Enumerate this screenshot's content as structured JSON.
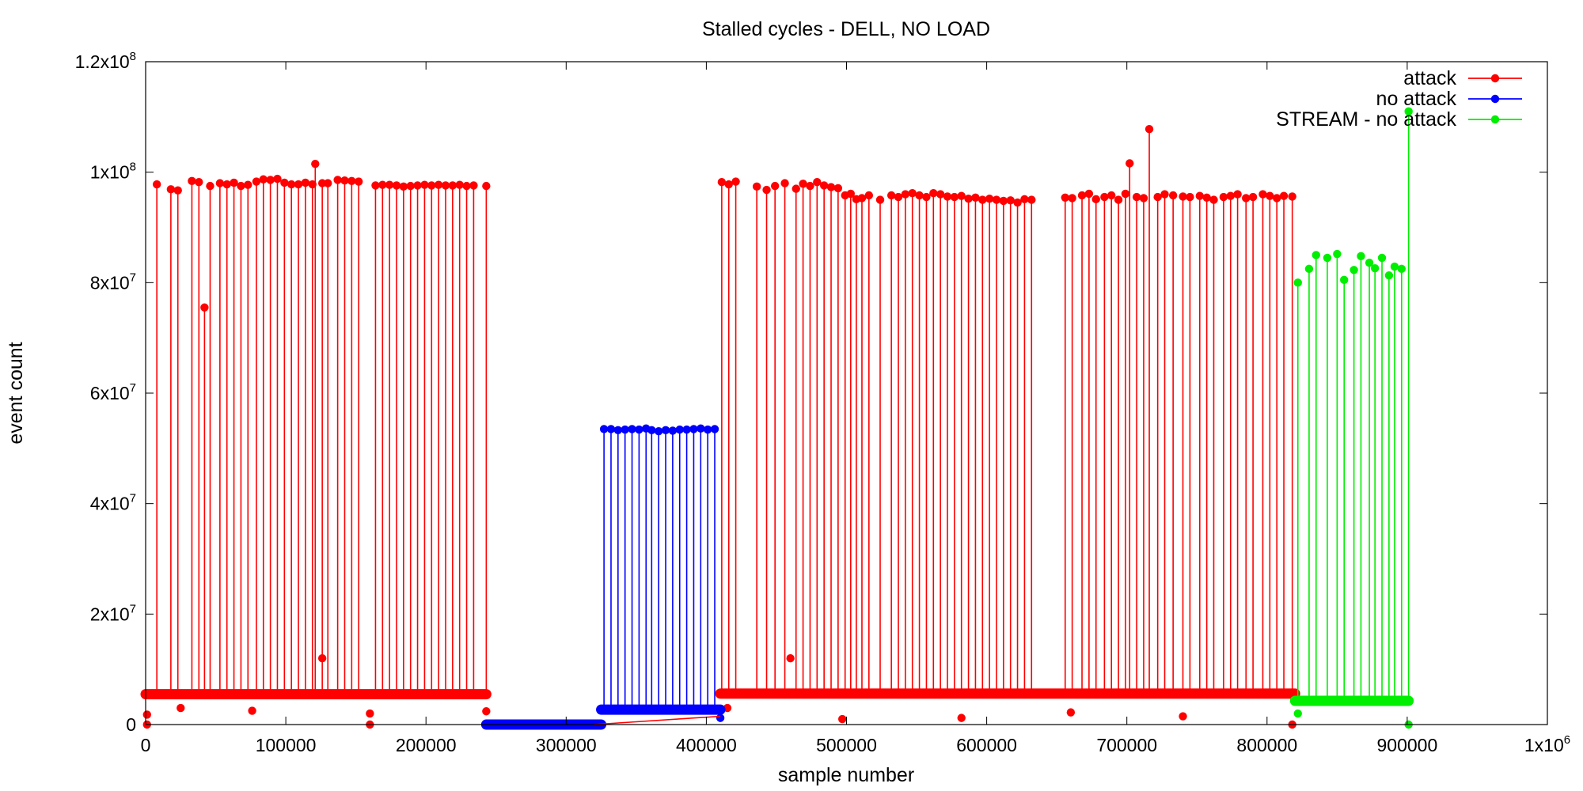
{
  "chart_data": {
    "type": "line",
    "title": "Stalled cycles - DELL, NO LOAD",
    "xlabel": "sample number",
    "ylabel": "event count",
    "xlim": [
      0,
      1000000
    ],
    "ylim": [
      0,
      120000000
    ],
    "x_ticks": [
      {
        "value": 0,
        "label": "0"
      },
      {
        "value": 100000,
        "label": "100000"
      },
      {
        "value": 200000,
        "label": "200000"
      },
      {
        "value": 300000,
        "label": "300000"
      },
      {
        "value": 400000,
        "label": "400000"
      },
      {
        "value": 500000,
        "label": "500000"
      },
      {
        "value": 600000,
        "label": "600000"
      },
      {
        "value": 700000,
        "label": "700000"
      },
      {
        "value": 800000,
        "label": "800000"
      },
      {
        "value": 900000,
        "label": "900000"
      },
      {
        "value": 1000000,
        "label": "1x10",
        "sup": "6"
      }
    ],
    "y_ticks": [
      {
        "value": 0,
        "label": "0"
      },
      {
        "value": 20000000,
        "label": "2x10",
        "sup": "7"
      },
      {
        "value": 40000000,
        "label": "4x10",
        "sup": "7"
      },
      {
        "value": 60000000,
        "label": "6x10",
        "sup": "7"
      },
      {
        "value": 80000000,
        "label": "8x10",
        "sup": "7"
      },
      {
        "value": 100000000,
        "label": "1x10",
        "sup": "8"
      },
      {
        "value": 120000000,
        "label": "1.2x10",
        "sup": "8"
      }
    ],
    "grid": false,
    "legend_position": "top-right",
    "series": [
      {
        "name": "attack",
        "color": "#ff0000",
        "segments": [
          {
            "x_start": 0,
            "x_end": 243000,
            "baseline": 5500000,
            "spikes": [
              [
                8000,
                97800000
              ],
              [
                18000,
                96900000
              ],
              [
                23000,
                96700000
              ],
              [
                33000,
                98400000
              ],
              [
                38000,
                98200000
              ],
              [
                42000,
                75500000
              ],
              [
                46000,
                97500000
              ],
              [
                53000,
                98000000
              ],
              [
                58000,
                97800000
              ],
              [
                63000,
                98100000
              ],
              [
                68000,
                97500000
              ],
              [
                73000,
                97700000
              ],
              [
                79000,
                98300000
              ],
              [
                84000,
                98700000
              ],
              [
                89000,
                98600000
              ],
              [
                94000,
                98800000
              ],
              [
                99000,
                98100000
              ],
              [
                104000,
                97800000
              ],
              [
                109000,
                97800000
              ],
              [
                114000,
                98100000
              ],
              [
                119000,
                97800000
              ],
              [
                121000,
                101500000
              ],
              [
                126000,
                98000000
              ],
              [
                130000,
                98000000
              ],
              [
                137000,
                98600000
              ],
              [
                142000,
                98500000
              ],
              [
                147000,
                98400000
              ],
              [
                152000,
                98300000
              ],
              [
                164000,
                97600000
              ],
              [
                169000,
                97700000
              ],
              [
                174000,
                97700000
              ],
              [
                179000,
                97600000
              ],
              [
                184000,
                97400000
              ],
              [
                189000,
                97500000
              ],
              [
                194000,
                97600000
              ],
              [
                199000,
                97700000
              ],
              [
                204000,
                97600000
              ],
              [
                209000,
                97700000
              ],
              [
                214000,
                97600000
              ],
              [
                219000,
                97600000
              ],
              [
                224000,
                97700000
              ],
              [
                229000,
                97500000
              ],
              [
                234000,
                97600000
              ],
              [
                243000,
                97500000
              ]
            ]
          },
          {
            "x_start": 410000,
            "x_end": 820000,
            "baseline": 5600000,
            "spikes": [
              [
                411000,
                98200000
              ],
              [
                416000,
                97800000
              ],
              [
                421000,
                98300000
              ],
              [
                436000,
                97400000
              ],
              [
                443000,
                96800000
              ],
              [
                449000,
                97500000
              ],
              [
                456000,
                98000000
              ],
              [
                464000,
                97000000
              ],
              [
                469000,
                97900000
              ],
              [
                474000,
                97500000
              ],
              [
                479000,
                98200000
              ],
              [
                484000,
                97600000
              ],
              [
                489000,
                97300000
              ],
              [
                494000,
                97100000
              ],
              [
                499000,
                95800000
              ],
              [
                503000,
                96100000
              ],
              [
                507000,
                95100000
              ],
              [
                511000,
                95300000
              ],
              [
                516000,
                95800000
              ],
              [
                524000,
                95000000
              ],
              [
                532000,
                95800000
              ],
              [
                537000,
                95500000
              ],
              [
                542000,
                96000000
              ],
              [
                547000,
                96200000
              ],
              [
                552000,
                95800000
              ],
              [
                557000,
                95500000
              ],
              [
                562000,
                96200000
              ],
              [
                567000,
                96000000
              ],
              [
                572000,
                95600000
              ],
              [
                577000,
                95500000
              ],
              [
                582000,
                95700000
              ],
              [
                587000,
                95200000
              ],
              [
                592000,
                95400000
              ],
              [
                597000,
                95000000
              ],
              [
                602000,
                95200000
              ],
              [
                607000,
                95000000
              ],
              [
                612000,
                94800000
              ],
              [
                617000,
                94900000
              ],
              [
                622000,
                94500000
              ],
              [
                627000,
                95100000
              ],
              [
                632000,
                95000000
              ],
              [
                656000,
                95400000
              ],
              [
                661000,
                95300000
              ],
              [
                668000,
                95800000
              ],
              [
                673000,
                96100000
              ],
              [
                678000,
                95100000
              ],
              [
                684000,
                95500000
              ],
              [
                689000,
                95800000
              ],
              [
                694000,
                95000000
              ],
              [
                699000,
                96100000
              ],
              [
                702000,
                101600000
              ],
              [
                707000,
                95500000
              ],
              [
                712000,
                95300000
              ],
              [
                716000,
                107800000
              ],
              [
                722000,
                95500000
              ],
              [
                727000,
                96000000
              ],
              [
                733000,
                95800000
              ],
              [
                740000,
                95600000
              ],
              [
                745000,
                95500000
              ],
              [
                752000,
                95700000
              ],
              [
                757000,
                95400000
              ],
              [
                762000,
                95000000
              ],
              [
                769000,
                95500000
              ],
              [
                774000,
                95700000
              ],
              [
                779000,
                96000000
              ],
              [
                785000,
                95300000
              ],
              [
                790000,
                95500000
              ],
              [
                797000,
                96000000
              ],
              [
                802000,
                95700000
              ],
              [
                807000,
                95300000
              ],
              [
                812000,
                95700000
              ],
              [
                818000,
                95600000
              ]
            ]
          }
        ],
        "outliers": [
          [
            1000,
            0
          ],
          [
            1000,
            1800000
          ],
          [
            25000,
            3000000
          ],
          [
            76000,
            2500000
          ],
          [
            126000,
            12000000
          ],
          [
            160000,
            0
          ],
          [
            160000,
            2000000
          ],
          [
            243000,
            2400000
          ],
          [
            415000,
            3000000
          ],
          [
            460000,
            12000000
          ],
          [
            497000,
            1000000
          ],
          [
            582000,
            1200000
          ],
          [
            660000,
            2200000
          ],
          [
            740000,
            1500000
          ],
          [
            818000,
            0
          ]
        ]
      },
      {
        "name": "no attack",
        "color": "#0000ff",
        "segments": [
          {
            "x_start": 243000,
            "x_end": 325000,
            "baseline": 0,
            "spikes": []
          },
          {
            "x_start": 325000,
            "x_end": 410000,
            "baseline": 2700000,
            "spikes": [
              [
                327000,
                53500000
              ],
              [
                332000,
                53500000
              ],
              [
                337000,
                53300000
              ],
              [
                342000,
                53400000
              ],
              [
                347000,
                53500000
              ],
              [
                352000,
                53400000
              ],
              [
                357000,
                53600000
              ],
              [
                361000,
                53300000
              ],
              [
                366000,
                53100000
              ],
              [
                371000,
                53300000
              ],
              [
                376000,
                53200000
              ],
              [
                381000,
                53400000
              ],
              [
                386000,
                53400000
              ],
              [
                391000,
                53500000
              ],
              [
                396000,
                53600000
              ],
              [
                401000,
                53400000
              ],
              [
                406000,
                53500000
              ]
            ]
          }
        ],
        "outliers": [
          [
            410000,
            1200000
          ]
        ]
      },
      {
        "name": "STREAM - no attack",
        "color": "#00ee00",
        "segments": [
          {
            "x_start": 820000,
            "x_end": 901000,
            "baseline": 4300000,
            "spikes": [
              [
                822000,
                80000000
              ],
              [
                830000,
                82500000
              ],
              [
                835000,
                85000000
              ],
              [
                843000,
                84500000
              ],
              [
                850000,
                85200000
              ],
              [
                855000,
                80500000
              ],
              [
                862000,
                82300000
              ],
              [
                867000,
                84800000
              ],
              [
                873000,
                83600000
              ],
              [
                877000,
                82600000
              ],
              [
                882000,
                84500000
              ],
              [
                887000,
                81300000
              ],
              [
                891000,
                82900000
              ],
              [
                896000,
                82500000
              ],
              [
                901000,
                111000000
              ]
            ]
          }
        ],
        "outliers": [
          [
            822000,
            2000000
          ],
          [
            901000,
            0
          ]
        ]
      }
    ]
  }
}
